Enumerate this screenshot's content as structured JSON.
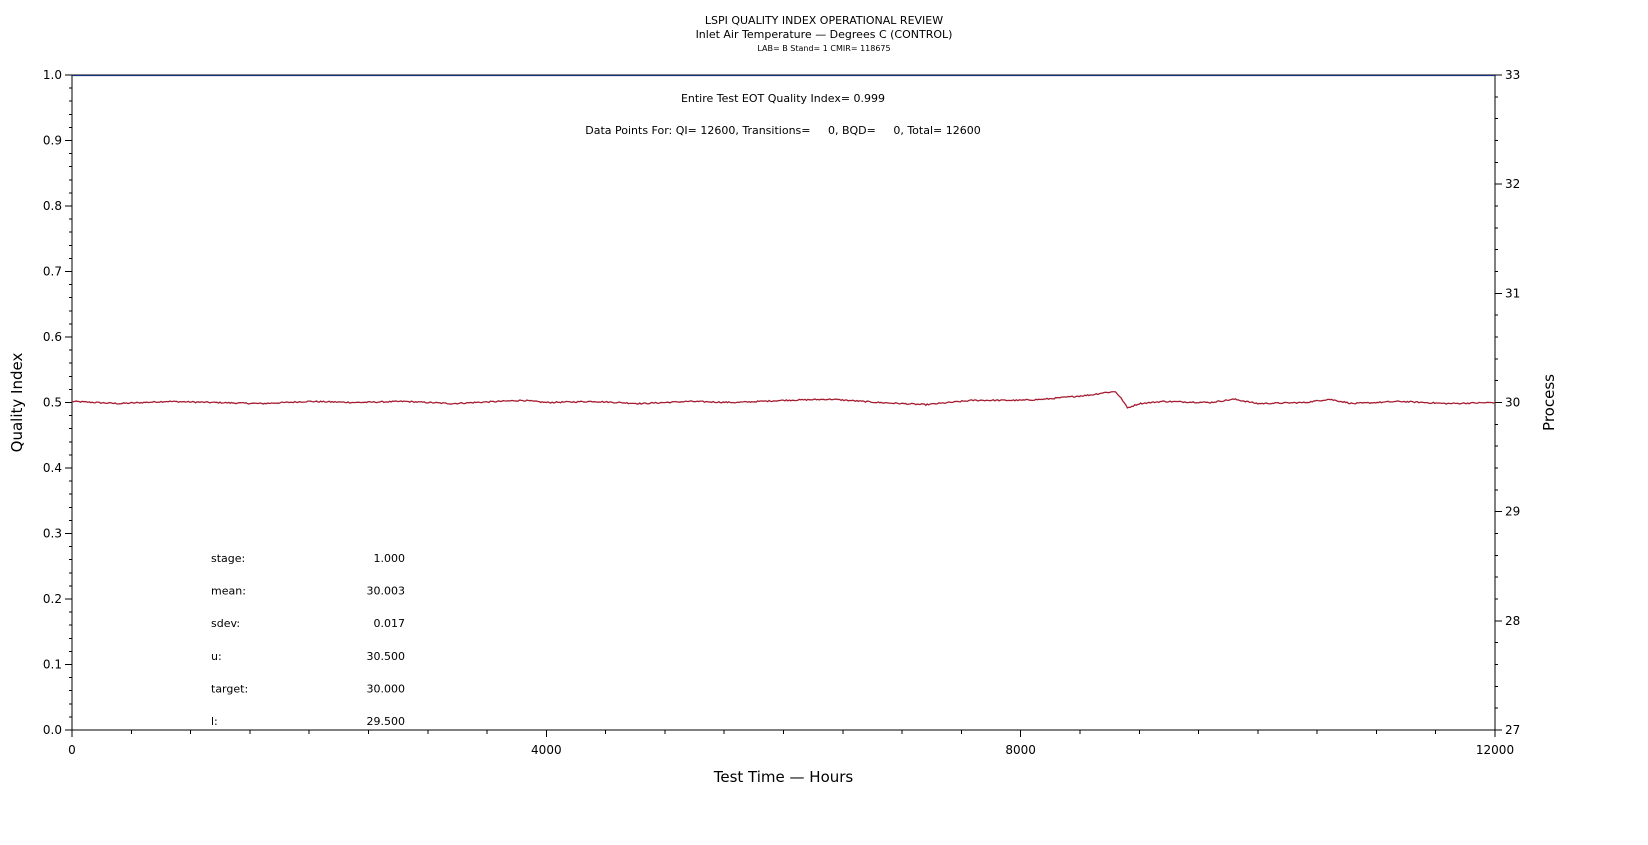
{
  "chart_data": {
    "type": "line",
    "title": "LSPI QUALITY INDEX OPERATIONAL REVIEW",
    "subtitle": "Inlet Air Temperature — Degrees C (CONTROL)",
    "subsubtitle": "LAB= B Stand= 1 CMIR= 118675",
    "annotations": [
      "Entire Test EOT Quality Index=   0.999",
      "Data Points For: QI= 12600, Transitions=     0, BQD=     0, Total= 12600"
    ],
    "xlabel": "Test Time — Hours",
    "ylabel_left": "Quality Index",
    "ylabel_right": "Process",
    "xlim": [
      0,
      12000
    ],
    "ylim_left": [
      0,
      1
    ],
    "ylim_right": [
      27,
      33
    ],
    "x_ticks": [
      "0",
      "4000",
      "8000",
      "12000"
    ],
    "y_left_ticks": [
      "0.0",
      "0.1",
      "0.2",
      "0.3",
      "0.4",
      "0.5",
      "0.6",
      "0.7",
      "0.8",
      "0.9",
      "1.0"
    ],
    "y_right_ticks": [
      "27",
      "28",
      "29",
      "30",
      "31",
      "32",
      "33"
    ],
    "series": [
      {
        "axis": "right",
        "color": "#a51c30",
        "x": [
          0,
          400,
          800,
          1200,
          1600,
          2000,
          2400,
          2800,
          3200,
          3600,
          3800,
          4000,
          4400,
          4800,
          5200,
          5600,
          6000,
          6400,
          6800,
          7200,
          7600,
          8000,
          8200,
          8400,
          8600,
          8700,
          8800,
          8860,
          8900,
          9000,
          9200,
          9600,
          9800,
          10000,
          10400,
          10600,
          10800,
          11200,
          11600,
          12000
        ],
        "y": [
          30.01,
          29.99,
          30.01,
          30.0,
          29.99,
          30.01,
          30.0,
          30.01,
          29.99,
          30.01,
          30.02,
          30.0,
          30.01,
          29.99,
          30.01,
          30.0,
          30.02,
          30.03,
          30.0,
          29.98,
          30.02,
          30.02,
          30.03,
          30.05,
          30.07,
          30.09,
          30.1,
          30.02,
          29.95,
          29.99,
          30.01,
          30.0,
          30.03,
          29.99,
          30.0,
          30.03,
          29.99,
          30.01,
          29.99,
          30.0
        ]
      },
      {
        "axis": "left",
        "color": "#1a3a8f",
        "x": [
          0,
          12000
        ],
        "y": [
          0.999,
          0.999
        ]
      }
    ],
    "grid": false,
    "legend": "none"
  },
  "stats": [
    {
      "label": "stage:",
      "value": "1.000"
    },
    {
      "label": "mean:",
      "value": "30.003"
    },
    {
      "label": "sdev:",
      "value": "0.017"
    },
    {
      "label": "u:",
      "value": "30.500"
    },
    {
      "label": "target:",
      "value": "30.000"
    },
    {
      "label": "l:",
      "value": "29.500"
    }
  ]
}
